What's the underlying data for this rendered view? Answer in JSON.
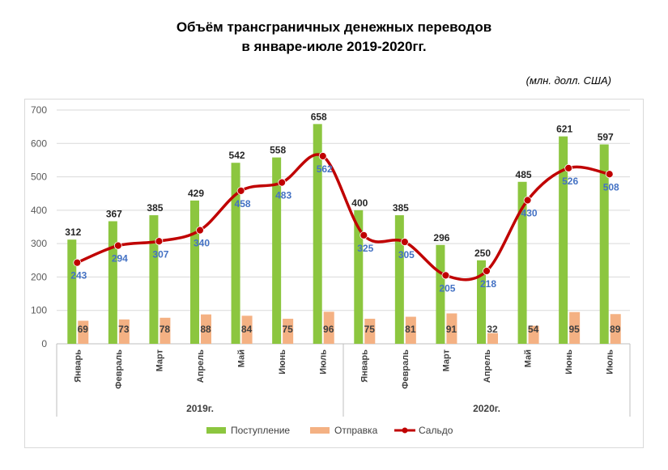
{
  "chart_data": {
    "type": "bar+line",
    "title_line1": "Объём трансграничных денежных переводов",
    "title_line2": "в январе-июле 2019-2020гг.",
    "units": "(млн. долл. США)",
    "ylim": [
      0,
      700
    ],
    "yticks": [
      0,
      100,
      200,
      300,
      400,
      500,
      600,
      700
    ],
    "grid": true,
    "legend_position": "bottom",
    "groups": [
      {
        "label": "2019г.",
        "size": 7
      },
      {
        "label": "2020г.",
        "size": 7
      }
    ],
    "categories": [
      "Январь",
      "Февраль",
      "Март",
      "Апрель",
      "Май",
      "Июнь",
      "Июль",
      "Январь",
      "Февраль",
      "Март",
      "Апрель",
      "Май",
      "Июнь",
      "Июль"
    ],
    "series": [
      {
        "name": "Поступление",
        "type": "bar",
        "color": "#8cc63f",
        "values": [
          312,
          367,
          385,
          429,
          542,
          558,
          658,
          400,
          385,
          296,
          250,
          485,
          621,
          597
        ]
      },
      {
        "name": "Отправка",
        "type": "bar",
        "color": "#f4b183",
        "values": [
          69,
          73,
          78,
          88,
          84,
          75,
          96,
          75,
          81,
          91,
          32,
          54,
          95,
          89
        ]
      },
      {
        "name": "Сальдо",
        "type": "line",
        "smooth": true,
        "color": "#c00000",
        "label_color": "#4472c4",
        "values": [
          243,
          294,
          307,
          340,
          458,
          483,
          562,
          325,
          305,
          205,
          218,
          430,
          526,
          508
        ]
      }
    ]
  }
}
